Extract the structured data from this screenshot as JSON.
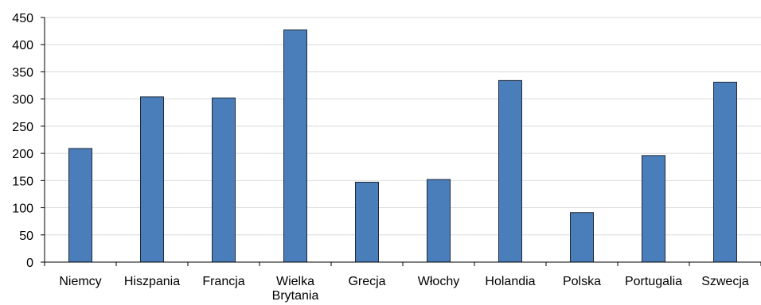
{
  "chart_data": {
    "type": "bar",
    "title": "",
    "xlabel": "",
    "ylabel": "",
    "categories": [
      "Niemcy",
      "Hiszpania",
      "Francja",
      "Wielka Brytania",
      "Grecja",
      "Włochy",
      "Holandia",
      "Polska",
      "Portugalia",
      "Szwecja"
    ],
    "category_lines": [
      [
        "Niemcy"
      ],
      [
        "Hiszpania"
      ],
      [
        "Francja"
      ],
      [
        "Wielka",
        "Brytania"
      ],
      [
        "Grecja"
      ],
      [
        "Włochy"
      ],
      [
        "Holandia"
      ],
      [
        "Polska"
      ],
      [
        "Portugalia"
      ],
      [
        "Szwecja"
      ]
    ],
    "values": [
      209,
      304,
      302,
      427,
      147,
      152,
      334,
      91,
      196,
      331
    ],
    "ylim": [
      0,
      450
    ],
    "yticks": [
      0,
      50,
      100,
      150,
      200,
      250,
      300,
      350,
      400,
      450
    ],
    "grid": true,
    "legend": "none",
    "colors": {
      "bar": "#4a7ebb",
      "bar_stroke": "#1f2a3a",
      "grid": "#d9d9d9",
      "axis": "#000000"
    }
  }
}
